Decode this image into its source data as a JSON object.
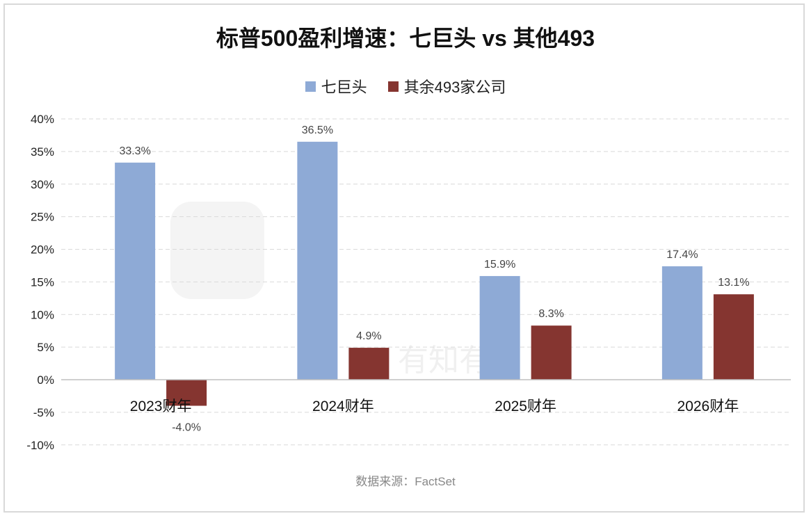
{
  "title": "标普500盈利增速：七巨头 vs 其他493",
  "source": "数据来源：FactSet",
  "watermark": "有知有行",
  "colors": {
    "series1": "#8eaad6",
    "series2": "#853530",
    "grid": "#d9d9d9",
    "axis": "#bfbfbf"
  },
  "chart_data": {
    "type": "bar",
    "title": "标普500盈利增速：七巨头 vs 其他493",
    "categories": [
      "2023财年",
      "2024财年",
      "2025财年",
      "2026财年"
    ],
    "series": [
      {
        "name": "七巨头",
        "values": [
          33.3,
          36.5,
          15.9,
          17.4
        ],
        "labels": [
          "33.3%",
          "36.5%",
          "15.9%",
          "17.4%"
        ]
      },
      {
        "name": "其余493家公司",
        "values": [
          -4.0,
          4.9,
          8.3,
          13.1
        ],
        "labels": [
          "-4.0%",
          "4.9%",
          "8.3%",
          "13.1%"
        ]
      }
    ],
    "yticks": [
      "40%",
      "35%",
      "30%",
      "25%",
      "20%",
      "15%",
      "10%",
      "5%",
      "0%",
      "-5%",
      "-10%"
    ],
    "ytick_values": [
      40,
      35,
      30,
      25,
      20,
      15,
      10,
      5,
      0,
      -5,
      -10
    ],
    "ylim": [
      -10,
      40
    ],
    "xlabel": "",
    "ylabel": "",
    "grid": true,
    "legend_position": "top-center"
  }
}
